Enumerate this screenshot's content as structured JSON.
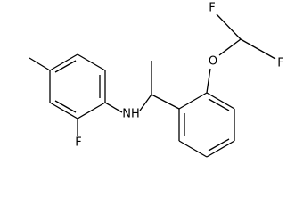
{
  "atoms": [
    {
      "label": "F"
    },
    {
      "label": "F"
    },
    {
      "label": "O"
    },
    {
      "label": "F"
    },
    {
      "label": "NH"
    }
  ]
}
